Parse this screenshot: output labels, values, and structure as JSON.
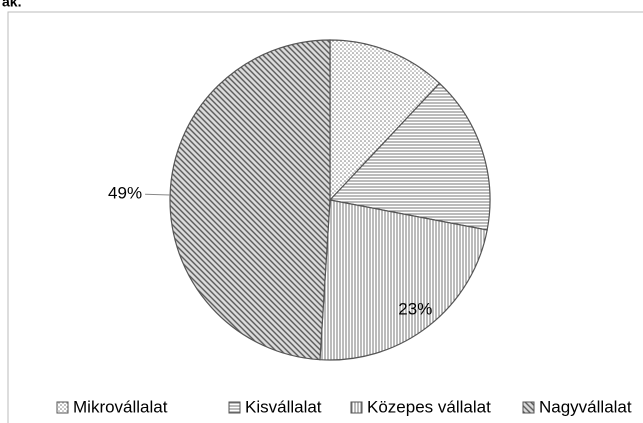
{
  "note": "ak.",
  "chart_data": {
    "type": "pie",
    "categories": [
      "Mikrovállalat",
      "Kisvállalat",
      "Közepes vállalat",
      "Nagyvállalat"
    ],
    "values": [
      12,
      16,
      23,
      49
    ],
    "value_labels": [
      null,
      null,
      "23%",
      "49%"
    ],
    "legend": "bottom"
  }
}
